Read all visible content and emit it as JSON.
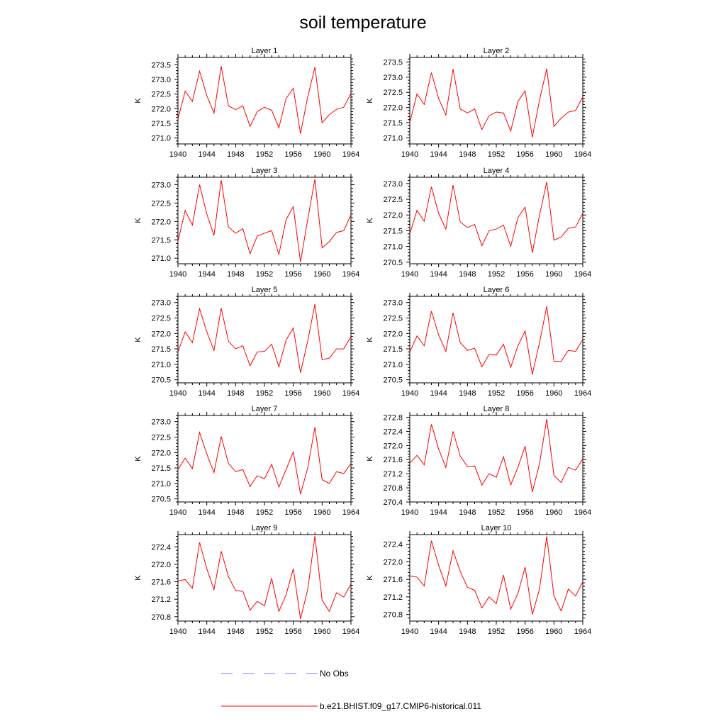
{
  "title": "soil temperature",
  "legend": [
    {
      "label": "No Obs",
      "color": "#7f7fff",
      "dash": true
    },
    {
      "label": "b.e21.BHIST.f09_g17.CMIP6-historical.011",
      "color": "#ff0000",
      "dash": false
    }
  ],
  "chart_data": [
    {
      "type": "line",
      "title": "Layer 1",
      "xlabel": "",
      "ylabel": "K",
      "xlim": [
        1940,
        1964
      ],
      "ylim": [
        270.8,
        273.75
      ],
      "xticks": [
        1940,
        1944,
        1948,
        1952,
        1956,
        1960,
        1964
      ],
      "yticks": [
        "271.0",
        "271.5",
        "272.0",
        "272.5",
        "273.0",
        "273.5"
      ],
      "x": [
        1940,
        1941,
        1942,
        1943,
        1944,
        1945,
        1946,
        1947,
        1948,
        1949,
        1950,
        1951,
        1952,
        1953,
        1954,
        1955,
        1956,
        1957,
        1958,
        1959,
        1960,
        1961,
        1962,
        1963,
        1964
      ],
      "series": [
        {
          "name": "b.e21.BHIST.f09_g17.CMIP6-historical.011",
          "color": "#ff0000",
          "values": [
            271.65,
            272.6,
            272.25,
            273.28,
            272.45,
            271.85,
            273.45,
            272.1,
            271.97,
            272.1,
            271.4,
            271.9,
            272.05,
            271.95,
            271.35,
            272.35,
            272.7,
            271.15,
            272.4,
            273.42,
            271.52,
            271.8,
            271.98,
            272.05,
            272.52
          ]
        }
      ]
    },
    {
      "type": "line",
      "title": "Layer 2",
      "xlabel": "",
      "ylabel": "K",
      "xlim": [
        1940,
        1964
      ],
      "ylim": [
        270.8,
        273.65
      ],
      "xticks": [
        1940,
        1944,
        1948,
        1952,
        1956,
        1960,
        1964
      ],
      "yticks": [
        "271.0",
        "271.5",
        "272.0",
        "272.5",
        "273.0",
        "273.5"
      ],
      "x": [
        1940,
        1941,
        1942,
        1943,
        1944,
        1945,
        1946,
        1947,
        1948,
        1949,
        1950,
        1951,
        1952,
        1953,
        1954,
        1955,
        1956,
        1957,
        1958,
        1959,
        1960,
        1961,
        1962,
        1963,
        1964
      ],
      "series": [
        {
          "name": "b.e21.BHIST.f09_g17.CMIP6-historical.011",
          "color": "#ff0000",
          "values": [
            271.5,
            272.45,
            272.1,
            273.15,
            272.3,
            271.75,
            273.27,
            271.95,
            271.82,
            271.95,
            271.27,
            271.73,
            271.85,
            271.82,
            271.22,
            272.2,
            272.55,
            271.02,
            272.25,
            273.28,
            271.38,
            271.65,
            271.85,
            271.9,
            272.35
          ]
        }
      ]
    },
    {
      "type": "line",
      "title": "Layer 3",
      "xlabel": "",
      "ylabel": "K",
      "xlim": [
        1940,
        1964
      ],
      "ylim": [
        270.85,
        273.2
      ],
      "xticks": [
        1940,
        1944,
        1948,
        1952,
        1956,
        1960,
        1964
      ],
      "yticks": [
        "271.0",
        "271.5",
        "272.0",
        "272.5",
        "273.0"
      ],
      "x": [
        1940,
        1941,
        1942,
        1943,
        1944,
        1945,
        1946,
        1947,
        1948,
        1949,
        1950,
        1951,
        1952,
        1953,
        1954,
        1955,
        1956,
        1957,
        1958,
        1959,
        1960,
        1961,
        1962,
        1963,
        1964
      ],
      "series": [
        {
          "name": "b.e21.BHIST.f09_g17.CMIP6-historical.011",
          "color": "#ff0000",
          "values": [
            271.45,
            272.3,
            271.9,
            273.0,
            272.2,
            271.62,
            273.12,
            271.85,
            271.68,
            271.8,
            271.12,
            271.6,
            271.68,
            271.75,
            271.1,
            272.05,
            272.4,
            270.9,
            272.05,
            273.15,
            271.28,
            271.45,
            271.7,
            271.75,
            272.18
          ]
        }
      ]
    },
    {
      "type": "line",
      "title": "Layer 4",
      "xlabel": "",
      "ylabel": "K",
      "xlim": [
        1940,
        1964
      ],
      "ylim": [
        270.45,
        273.2
      ],
      "xticks": [
        1940,
        1944,
        1948,
        1952,
        1956,
        1960,
        1964
      ],
      "yticks": [
        "270.5",
        "271.0",
        "271.5",
        "272.0",
        "272.5",
        "273.0"
      ],
      "x": [
        1940,
        1941,
        1942,
        1943,
        1944,
        1945,
        1946,
        1947,
        1948,
        1949,
        1950,
        1951,
        1952,
        1953,
        1954,
        1955,
        1956,
        1957,
        1958,
        1959,
        1960,
        1961,
        1962,
        1963,
        1964
      ],
      "series": [
        {
          "name": "b.e21.BHIST.f09_g17.CMIP6-historical.011",
          "color": "#ff0000",
          "values": [
            271.4,
            272.15,
            271.8,
            272.9,
            272.05,
            271.55,
            272.95,
            271.78,
            271.6,
            271.7,
            271.02,
            271.5,
            271.55,
            271.68,
            271.0,
            271.92,
            272.25,
            270.8,
            272.0,
            273.05,
            271.2,
            271.3,
            271.58,
            271.62,
            272.05
          ]
        }
      ]
    },
    {
      "type": "line",
      "title": "Layer 5",
      "xlabel": "",
      "ylabel": "K",
      "xlim": [
        1940,
        1964
      ],
      "ylim": [
        270.4,
        273.2
      ],
      "xticks": [
        1940,
        1944,
        1948,
        1952,
        1956,
        1960,
        1964
      ],
      "yticks": [
        "270.5",
        "271.0",
        "271.5",
        "272.0",
        "272.5",
        "273.0"
      ],
      "x": [
        1940,
        1941,
        1942,
        1943,
        1944,
        1945,
        1946,
        1947,
        1948,
        1949,
        1950,
        1951,
        1952,
        1953,
        1954,
        1955,
        1956,
        1957,
        1958,
        1959,
        1960,
        1961,
        1962,
        1963,
        1964
      ],
      "series": [
        {
          "name": "b.e21.BHIST.f09_g17.CMIP6-historical.011",
          "color": "#ff0000",
          "values": [
            271.4,
            272.05,
            271.7,
            272.8,
            272.05,
            271.45,
            272.82,
            271.75,
            271.5,
            271.6,
            270.95,
            271.4,
            271.42,
            271.65,
            270.92,
            271.78,
            272.18,
            270.73,
            271.75,
            272.95,
            271.15,
            271.2,
            271.5,
            271.5,
            271.9
          ]
        }
      ]
    },
    {
      "type": "line",
      "title": "Layer 6",
      "xlabel": "",
      "ylabel": "K",
      "xlim": [
        1940,
        1964
      ],
      "ylim": [
        270.4,
        273.2
      ],
      "xticks": [
        1940,
        1944,
        1948,
        1952,
        1956,
        1960,
        1964
      ],
      "yticks": [
        "270.5",
        "271.0",
        "271.5",
        "272.0",
        "272.5",
        "273.0"
      ],
      "x": [
        1940,
        1941,
        1942,
        1943,
        1944,
        1945,
        1946,
        1947,
        1948,
        1949,
        1950,
        1951,
        1952,
        1953,
        1954,
        1955,
        1956,
        1957,
        1958,
        1959,
        1960,
        1961,
        1962,
        1963,
        1964
      ],
      "series": [
        {
          "name": "b.e21.BHIST.f09_g17.CMIP6-historical.011",
          "color": "#ff0000",
          "values": [
            271.4,
            271.92,
            271.6,
            272.72,
            271.95,
            271.42,
            272.67,
            271.7,
            271.45,
            271.52,
            270.92,
            271.32,
            271.3,
            271.65,
            270.9,
            271.6,
            272.08,
            270.67,
            271.7,
            272.88,
            271.1,
            271.1,
            271.45,
            271.42,
            271.8
          ]
        }
      ]
    },
    {
      "type": "line",
      "title": "Layer 7",
      "xlabel": "",
      "ylabel": "K",
      "xlim": [
        1940,
        1964
      ],
      "ylim": [
        270.4,
        273.2
      ],
      "xticks": [
        1940,
        1944,
        1948,
        1952,
        1956,
        1960,
        1964
      ],
      "yticks": [
        "270.5",
        "271.0",
        "271.5",
        "272.0",
        "272.5",
        "273.0"
      ],
      "x": [
        1940,
        1941,
        1942,
        1943,
        1944,
        1945,
        1946,
        1947,
        1948,
        1949,
        1950,
        1951,
        1952,
        1953,
        1954,
        1955,
        1956,
        1957,
        1958,
        1959,
        1960,
        1961,
        1962,
        1963,
        1964
      ],
      "series": [
        {
          "name": "b.e21.BHIST.f09_g17.CMIP6-historical.011",
          "color": "#ff0000",
          "values": [
            271.45,
            271.82,
            271.48,
            272.65,
            271.95,
            271.35,
            272.52,
            271.65,
            271.38,
            271.45,
            270.9,
            271.25,
            271.15,
            271.62,
            270.88,
            271.45,
            272.02,
            270.65,
            271.5,
            272.82,
            271.12,
            271.0,
            271.38,
            271.32,
            271.65
          ]
        }
      ]
    },
    {
      "type": "line",
      "title": "Layer 8",
      "xlabel": "",
      "ylabel": "K",
      "xlim": [
        1940,
        1964
      ],
      "ylim": [
        270.4,
        272.85
      ],
      "xticks": [
        1940,
        1944,
        1948,
        1952,
        1956,
        1960,
        1964
      ],
      "yticks": [
        "270.4",
        "270.8",
        "271.2",
        "271.6",
        "272.0",
        "272.4",
        "272.8"
      ],
      "x": [
        1940,
        1941,
        1942,
        1943,
        1944,
        1945,
        1946,
        1947,
        1948,
        1949,
        1950,
        1951,
        1952,
        1953,
        1954,
        1955,
        1956,
        1957,
        1958,
        1959,
        1960,
        1961,
        1962,
        1963,
        1964
      ],
      "series": [
        {
          "name": "b.e21.BHIST.f09_g17.CMIP6-historical.011",
          "color": "#ff0000",
          "values": [
            271.5,
            271.72,
            271.45,
            272.6,
            271.9,
            271.38,
            272.4,
            271.7,
            271.4,
            271.42,
            270.88,
            271.2,
            271.1,
            271.68,
            270.88,
            271.38,
            271.98,
            270.68,
            271.48,
            272.75,
            271.15,
            270.95,
            271.38,
            271.3,
            271.62
          ]
        }
      ]
    },
    {
      "type": "line",
      "title": "Layer 9",
      "xlabel": "",
      "ylabel": "K",
      "xlim": [
        1940,
        1964
      ],
      "ylim": [
        270.7,
        272.68
      ],
      "xticks": [
        1940,
        1944,
        1948,
        1952,
        1956,
        1960,
        1964
      ],
      "yticks": [
        "270.8",
        "271.2",
        "271.6",
        "272.0",
        "272.4"
      ],
      "x": [
        1940,
        1941,
        1942,
        1943,
        1944,
        1945,
        1946,
        1947,
        1948,
        1949,
        1950,
        1951,
        1952,
        1953,
        1954,
        1955,
        1956,
        1957,
        1958,
        1959,
        1960,
        1961,
        1962,
        1963,
        1964
      ],
      "series": [
        {
          "name": "b.e21.BHIST.f09_g17.CMIP6-historical.011",
          "color": "#ff0000",
          "values": [
            271.62,
            271.65,
            271.45,
            272.5,
            271.9,
            271.42,
            272.3,
            271.72,
            271.4,
            271.38,
            270.95,
            271.15,
            271.05,
            271.68,
            270.92,
            271.3,
            271.9,
            270.75,
            271.42,
            272.65,
            271.18,
            270.92,
            271.35,
            271.25,
            271.55
          ]
        }
      ]
    },
    {
      "type": "line",
      "title": "Layer 10",
      "xlabel": "",
      "ylabel": "K",
      "xlim": [
        1940,
        1964
      ],
      "ylim": [
        270.65,
        272.62
      ],
      "xticks": [
        1940,
        1944,
        1948,
        1952,
        1956,
        1960,
        1964
      ],
      "yticks": [
        "270.8",
        "271.2",
        "271.6",
        "272.0",
        "272.4"
      ],
      "x": [
        1940,
        1941,
        1942,
        1943,
        1944,
        1945,
        1946,
        1947,
        1948,
        1949,
        1950,
        1951,
        1952,
        1953,
        1954,
        1955,
        1956,
        1957,
        1958,
        1959,
        1960,
        1961,
        1962,
        1963,
        1964
      ],
      "series": [
        {
          "name": "b.e21.BHIST.f09_g17.CMIP6-historical.011",
          "color": "#ff0000",
          "values": [
            271.68,
            271.65,
            271.45,
            272.48,
            271.92,
            271.45,
            272.25,
            271.78,
            271.42,
            271.35,
            270.95,
            271.2,
            271.05,
            271.7,
            270.92,
            271.28,
            271.88,
            270.8,
            271.38,
            272.58,
            271.22,
            270.88,
            271.38,
            271.22,
            271.55
          ]
        }
      ]
    }
  ]
}
